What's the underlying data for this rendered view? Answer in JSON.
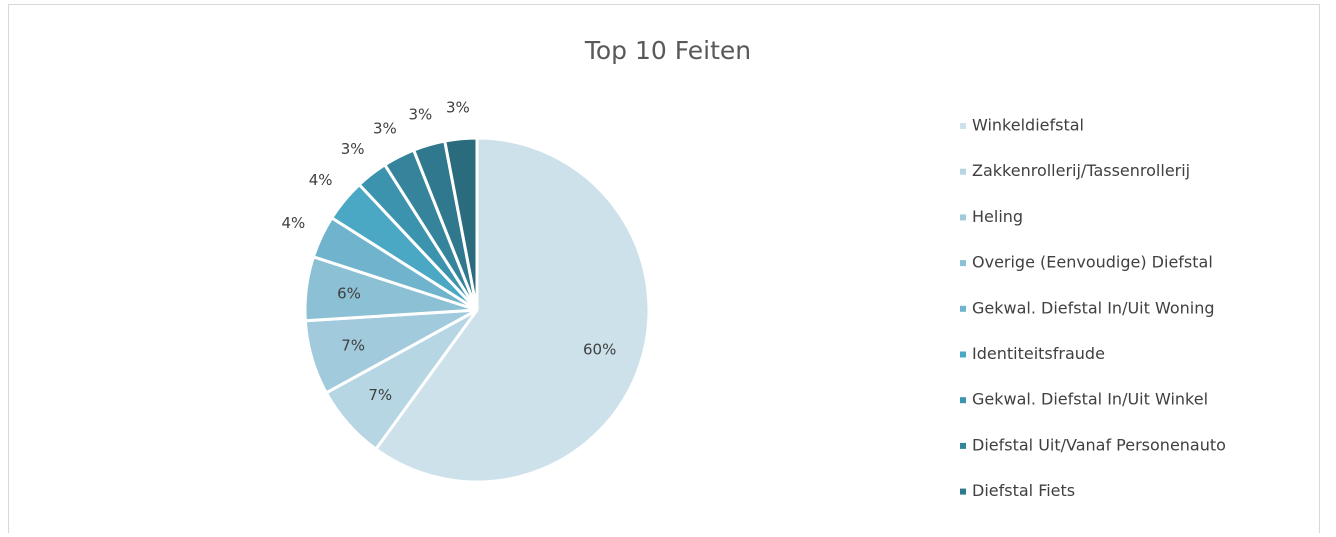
{
  "chart_data": {
    "type": "pie",
    "title": "Top 10 Feiten",
    "categories": [
      "Winkeldiefstal",
      "Zakkenrollerij/Tassenrollerij",
      "Heling",
      "Overige (Eenvoudige) Diefstal",
      "Gekwal. Diefstal In/Uit Woning",
      "Identiteitsfraude",
      "Gekwal. Diefstal In/Uit Winkel",
      "Diefstal Uit/Vanaf Personenauto",
      "Diefstal Fiets",
      null
    ],
    "values": [
      60,
      7,
      7,
      6,
      4,
      4,
      3,
      3,
      3,
      3
    ],
    "value_labels": [
      "60%",
      "7%",
      "7%",
      "6%",
      "4%",
      "4%",
      "3%",
      "3%",
      "3%",
      "3%"
    ],
    "colors": [
      "#cde1ea",
      "#b6d6e3",
      "#a1cbdc",
      "#8cc0d4",
      "#6fb4cc",
      "#4aa8c4",
      "#3c93ad",
      "#35849c",
      "#2f788d",
      "#2a6b7d"
    ],
    "legend": "right"
  }
}
